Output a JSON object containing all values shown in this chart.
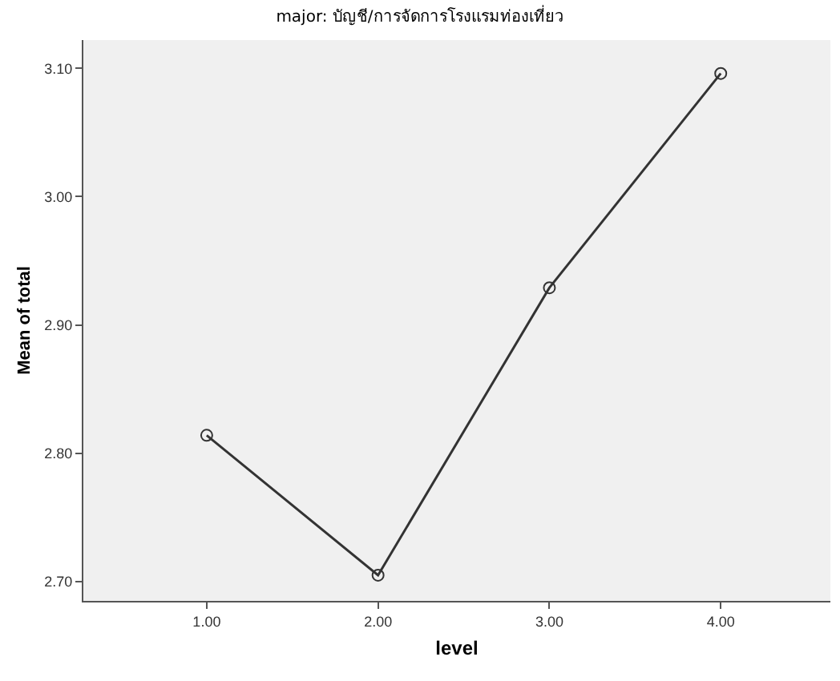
{
  "chart_data": {
    "type": "line",
    "title": "major: บัญชี/การจัดการโรงแรมท่องเที่ยว",
    "xlabel": "level",
    "ylabel": "Mean of total",
    "x": [
      1,
      2,
      3,
      4
    ],
    "values": [
      2.814,
      2.705,
      2.929,
      3.096
    ],
    "color": "#333333",
    "marker": "circle",
    "line_style": "solid",
    "xlim": [
      0.28,
      4.64
    ],
    "xticks": [
      {
        "value": 1,
        "label": "1.00"
      },
      {
        "value": 2,
        "label": "2.00"
      },
      {
        "value": 3,
        "label": "3.00"
      },
      {
        "value": 4,
        "label": "4.00"
      }
    ],
    "ylim": [
      2.685,
      3.122
    ],
    "yticks": [
      {
        "value": 2.7,
        "label": "2.70"
      },
      {
        "value": 2.8,
        "label": "2.80"
      },
      {
        "value": 2.9,
        "label": "2.90"
      },
      {
        "value": 3.0,
        "label": "3.00"
      },
      {
        "value": 3.1,
        "label": "3.10"
      }
    ],
    "grid": false,
    "legend": false
  }
}
